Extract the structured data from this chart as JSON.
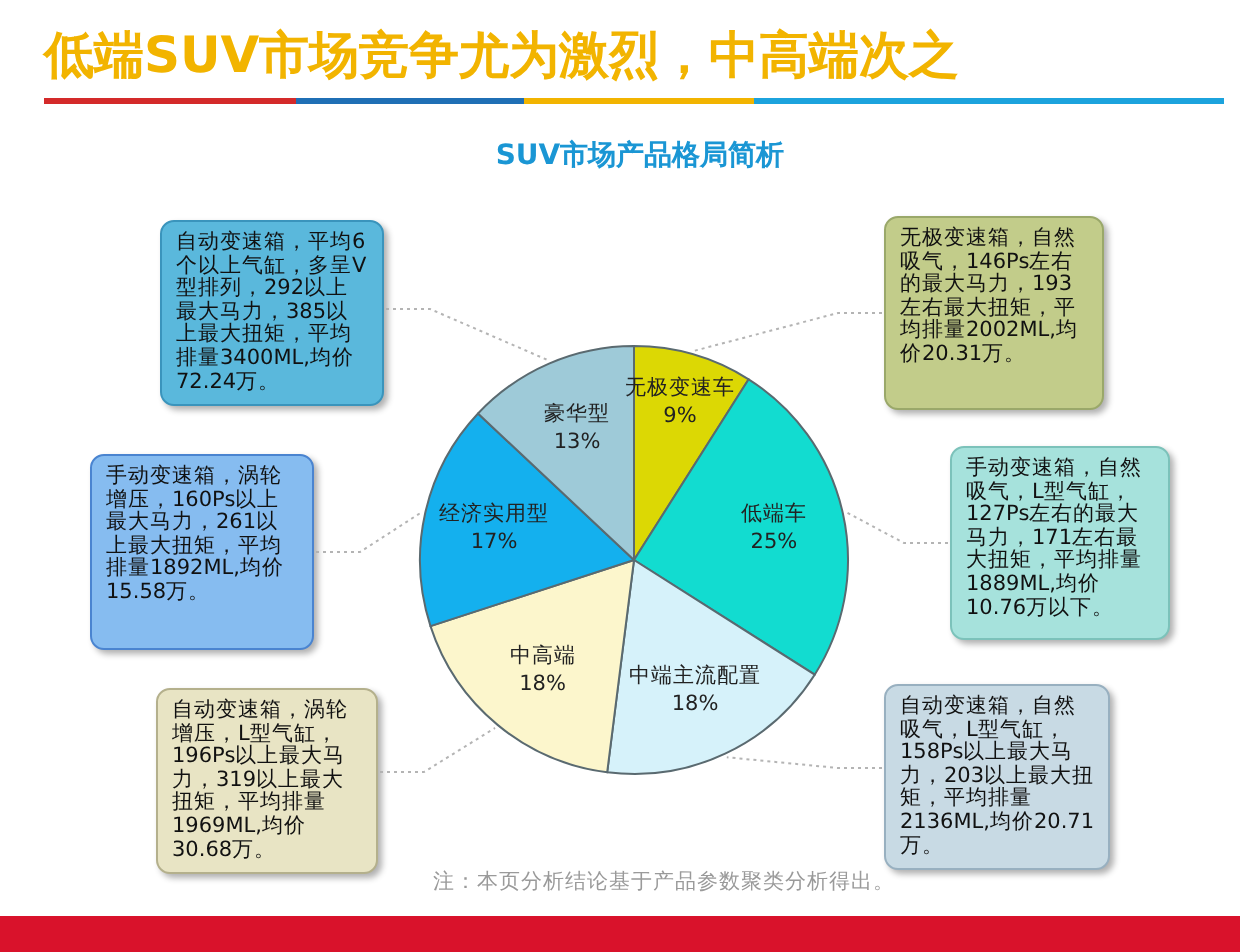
{
  "chart_data": {
    "type": "pie",
    "title": "低端SUV市场竞争尤为激烈，中高端次之",
    "subtitle": "SUV市场产品格局简析",
    "categories": [
      "无极变速车",
      "低端车",
      "中端主流配置",
      "中高端",
      "经济实用型",
      "豪华型"
    ],
    "values": [
      9,
      25,
      18,
      18,
      17,
      13
    ],
    "value_labels": [
      "9%",
      "25%",
      "18%",
      "18%",
      "17%",
      "13%"
    ],
    "colors": [
      "#dcd804",
      "#12dcd0",
      "#d6f2fa",
      "#fcf6cc",
      "#14b0ee",
      "#9ecad8"
    ],
    "annotations": [
      "自动变速箱，平均6个以上气缸，多呈V型排列，292以上最大马力，385以上最大扭矩，平均排量3400ML,均价72.24万。",
      "无极变速箱，自然吸气，146Ps左右的最大马力，193左右最大扭矩，平均排量2002ML,均价20.31万。",
      "手动变速箱，涡轮增压，160Ps以上最大马力，261以上最大扭矩，平均排量1892ML,均价15.58万。",
      "手动变速箱，自然吸气，L型气缸，127Ps左右的最大马力，171左右最大扭矩，平均排量1889ML,均价10.76万以下。",
      "自动变速箱，涡轮增压，L型气缸，196Ps以上最大马力，319以上最大扭矩，平均排量1969ML,均价30.68万。",
      "自动变速箱，自然吸气，L型气缸，158Ps以上最大马力，203以上最大扭矩，平均排量2136ML,均价20.71万。",
      "注：本页分析结论基于产品参数聚类分析得出。"
    ]
  }
}
